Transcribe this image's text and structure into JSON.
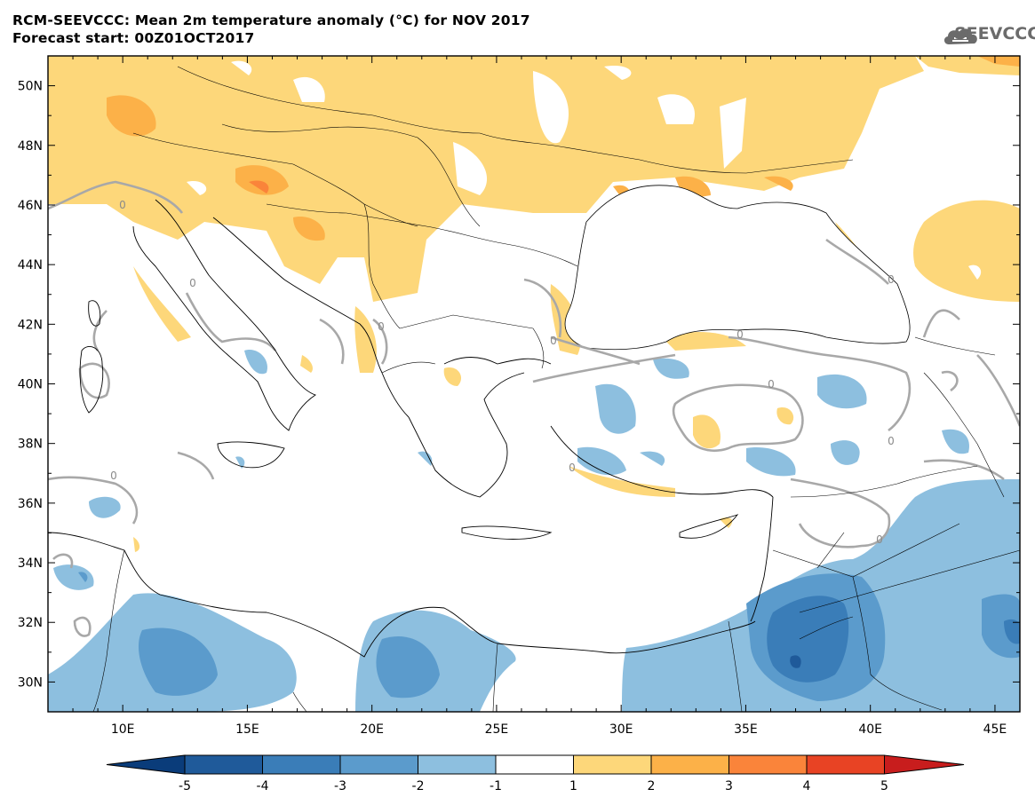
{
  "header": {
    "title": "RCM-SEEVCCC: Mean 2m temperature anomaly (°C) for NOV 2017",
    "subtitle": "Forecast start: 00Z01OCT2017",
    "logo_text": "SEEVCCC"
  },
  "map_data": {
    "type": "contour-map",
    "lon_range": [
      7,
      46
    ],
    "lat_range": [
      29,
      51
    ],
    "lon_ticks": [
      "10E",
      "15E",
      "20E",
      "25E",
      "30E",
      "35E",
      "40E",
      "45E"
    ],
    "lat_ticks": [
      "30N",
      "32N",
      "34N",
      "36N",
      "38N",
      "40N",
      "42N",
      "44N",
      "46N",
      "48N",
      "50N"
    ],
    "zero_contour_label": "0",
    "colorbar": {
      "labels": [
        "-5",
        "-4",
        "-3",
        "-2",
        "-1",
        "1",
        "2",
        "3",
        "4",
        "5"
      ],
      "colors": [
        "#1f5a9a",
        "#3a7db8",
        "#5b9bcc",
        "#8dbfdf",
        "#ffffff",
        "#fdd77a",
        "#fcb148",
        "#fa843a",
        "#e84324"
      ],
      "under_color": "#0a3c7a",
      "over_color": "#c81d1d"
    }
  }
}
